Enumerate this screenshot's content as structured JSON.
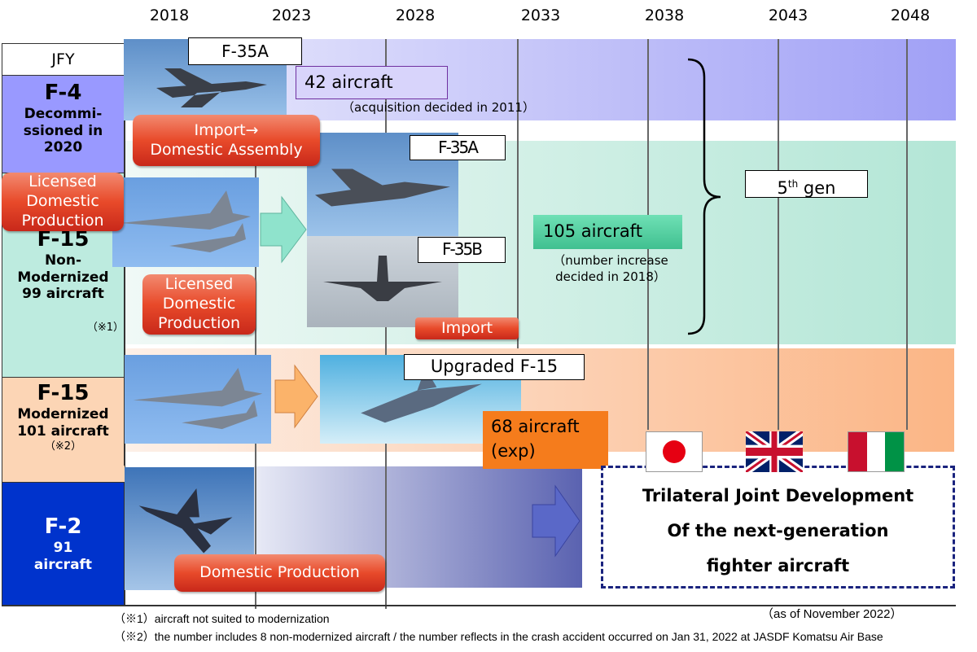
{
  "years": [
    "2018",
    "2023",
    "2028",
    "2033",
    "2038",
    "2043",
    "2048"
  ],
  "left": {
    "header": "JFY",
    "f4": {
      "name": "F-4",
      "desc": [
        "Decommi-",
        "ssioned in",
        "2020"
      ]
    },
    "f15n": {
      "name": "F-15",
      "desc": [
        "Non-",
        "Modernized",
        "99 aircraft"
      ],
      "note": "（※1）"
    },
    "f15m": {
      "name": "F-15",
      "desc": [
        "Modernized",
        "101 aircraft"
      ],
      "note": "（※2）"
    },
    "f2": {
      "name": "F-2",
      "desc": [
        "91",
        "aircraft"
      ]
    }
  },
  "f35a_row": {
    "label": "F-35A",
    "count": "42 aircraft",
    "sub": "（acquisition decided in 2011）",
    "method": [
      "Import→",
      "Domestic Assembly"
    ]
  },
  "f35_row": {
    "label_a": "F-35A",
    "label_b": "F-35B",
    "count": "105 aircraft",
    "sub": [
      "（number increase",
      "decided in 2018）"
    ],
    "licensed": [
      "Licensed",
      "Domestic",
      "Production"
    ],
    "licensed2": [
      "Licensed",
      "Domestic",
      "Production"
    ],
    "import": "Import"
  },
  "mod_row": {
    "label": "Upgraded F-15",
    "count": [
      "68 aircraft",
      "(exp)"
    ]
  },
  "f2_row": {
    "method": "Domestic Production"
  },
  "gen": {
    "sup_pre": "5",
    "sup": "th",
    "post": " gen"
  },
  "joint": {
    "lines": [
      "Trilateral Joint Development",
      "Of the next-generation",
      "fighter aircraft"
    ],
    "flags": [
      "japan-flag",
      "uk-flag",
      "italy-flag"
    ]
  },
  "footer": {
    "asof": "（as of November  2022）",
    "n1": "（※1）aircraft not suited to modernization",
    "n2": "（※2）the number includes 8 non-modernized aircraft / the number reflects in the crash accident occurred on Jan 31, 2022 at JASDF Komatsu Air Base"
  },
  "colors": {
    "f4": "#9999ff",
    "f15n": "#bdebdf",
    "f15m": "#fcd5b5",
    "f2": "#0033cc",
    "accent_red": "#e84a2a",
    "count_f35": "#50d2a0",
    "count_mod": "#f57c1c"
  }
}
